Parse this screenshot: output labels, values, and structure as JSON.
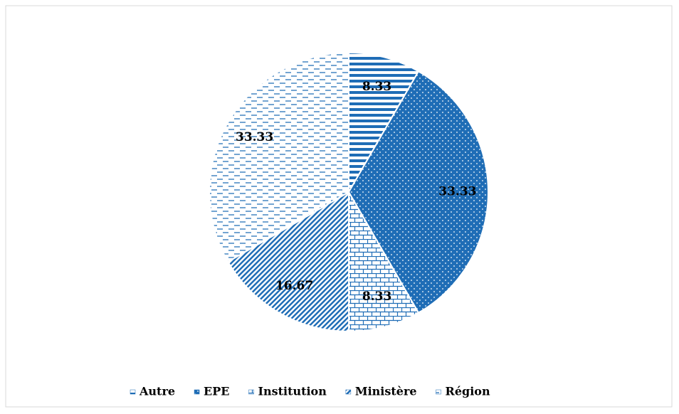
{
  "chart_data": {
    "type": "pie",
    "categories": [
      "Autre",
      "EPE",
      "Institution",
      "Ministère",
      "Région"
    ],
    "values": [
      8.33,
      33.33,
      8.33,
      16.67,
      33.33
    ],
    "colors": [
      "#1f6db6",
      "#1f6db6",
      "#1f6db6",
      "#1f6db6",
      "#1f6db6"
    ],
    "patterns": [
      "horizontal",
      "dots",
      "bricks",
      "diagonal",
      "dashes"
    ],
    "legend": "bottom"
  }
}
